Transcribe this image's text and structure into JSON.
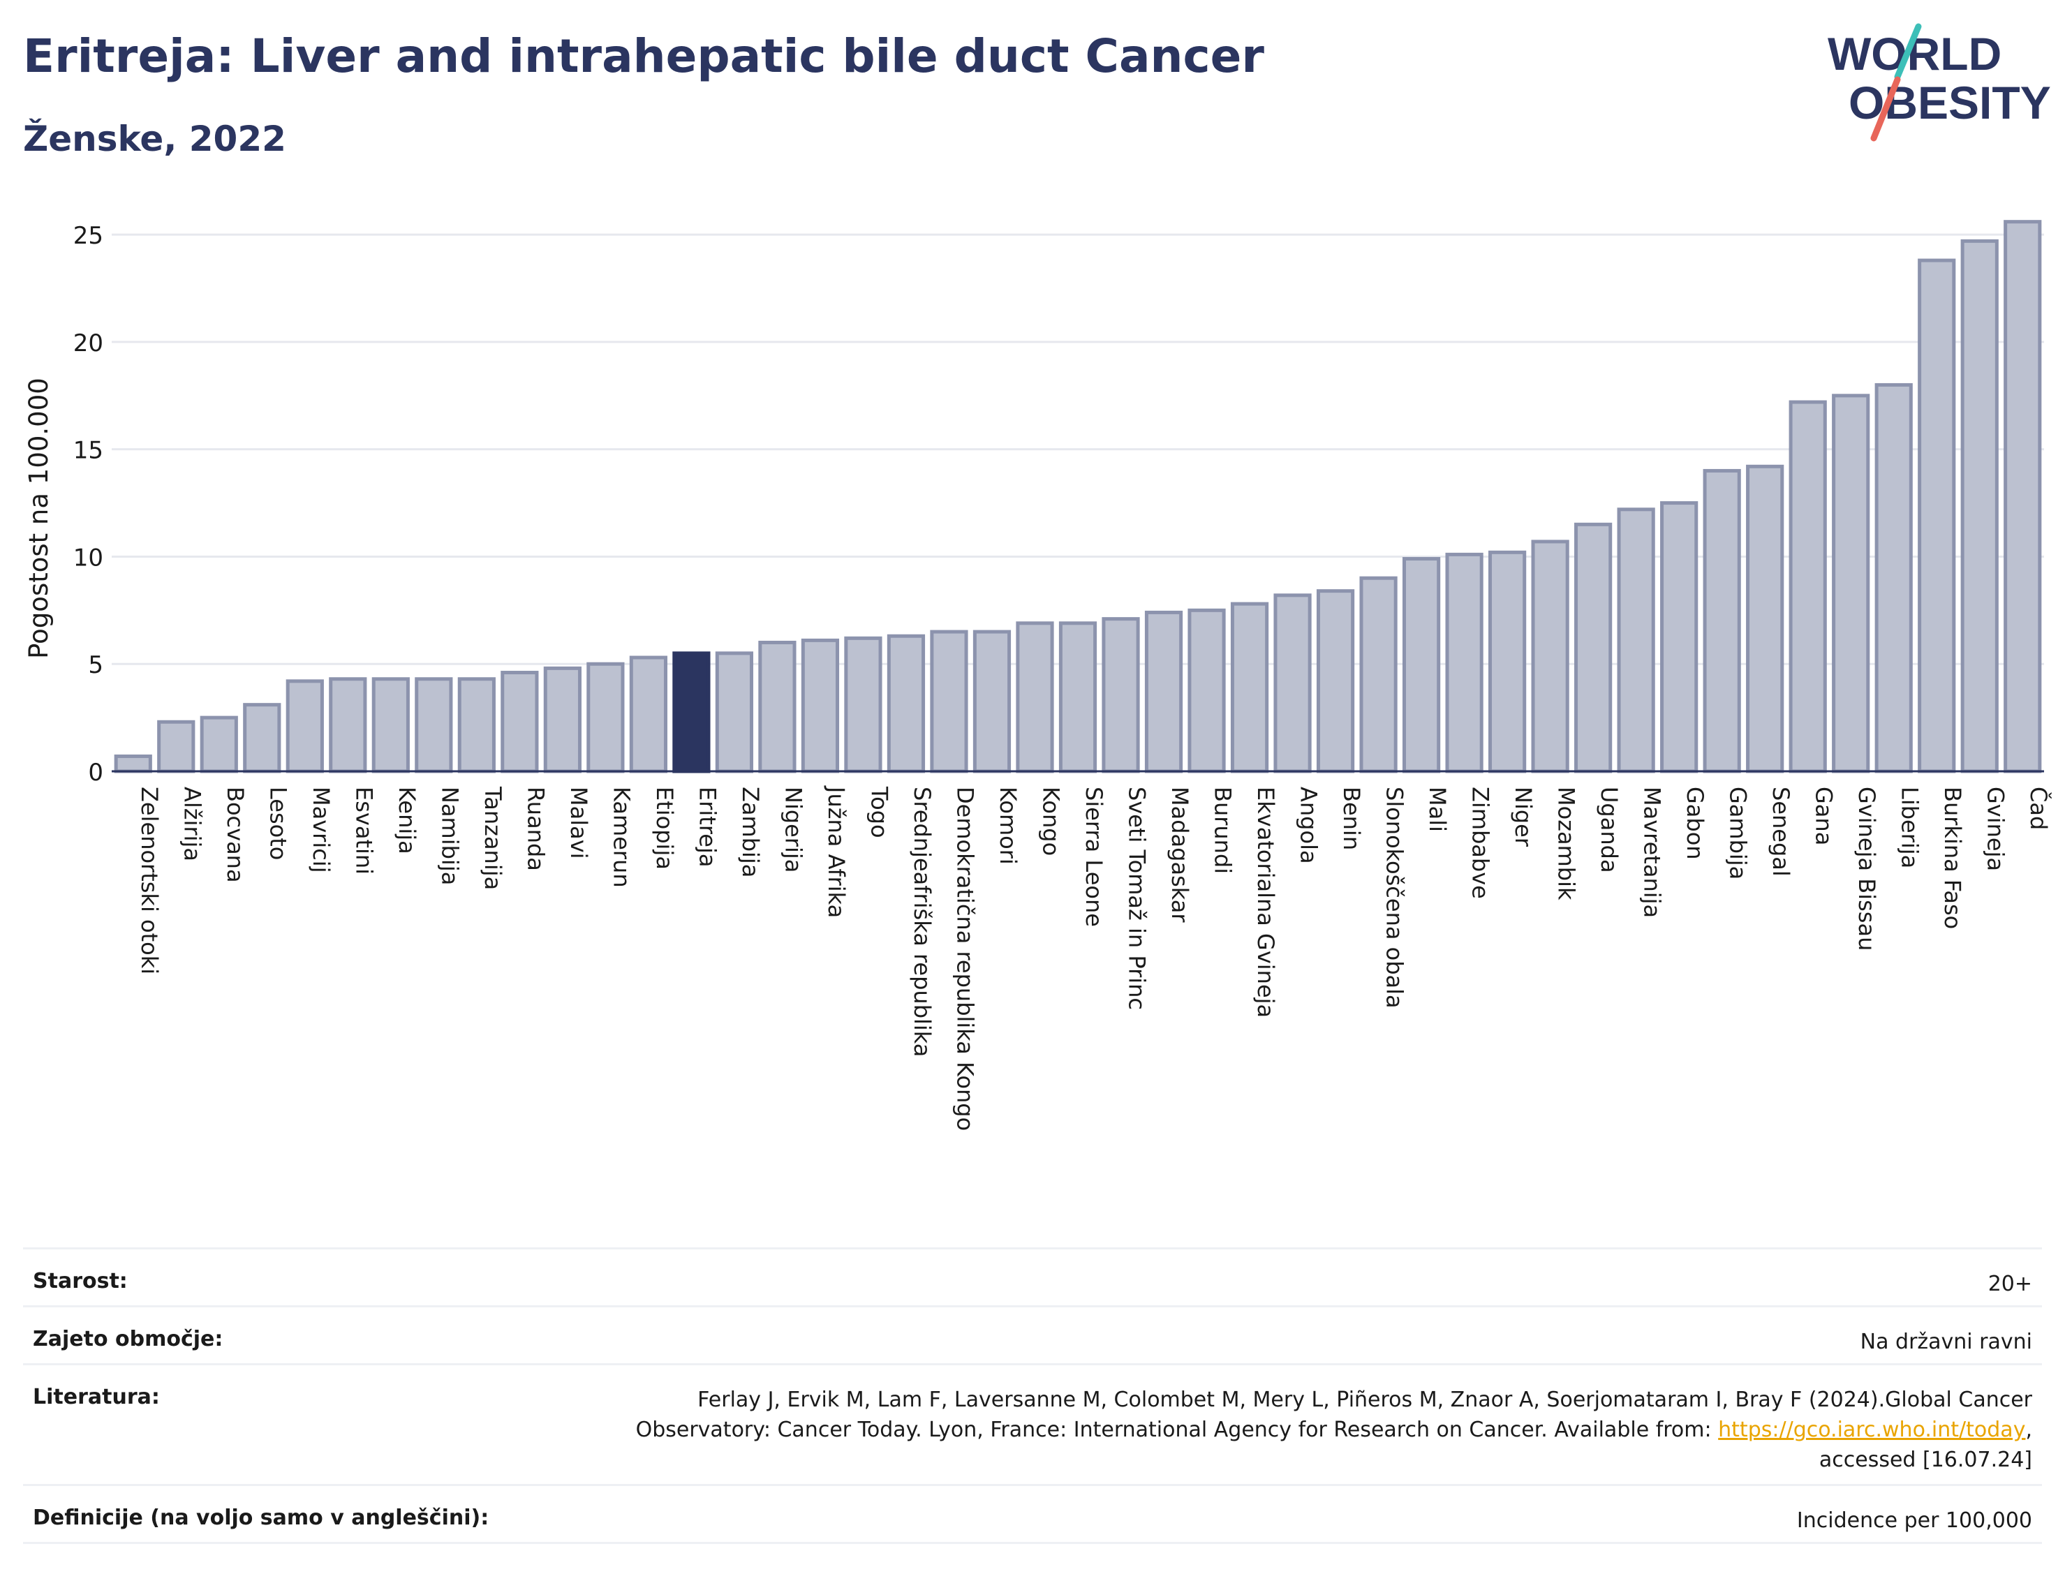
{
  "title": "Eritreja: Liver and intrahepatic bile duct Cancer",
  "subtitle": "Ženske, 2022",
  "logo": {
    "line1": "WORLD",
    "line2": "OBESITY"
  },
  "colors": {
    "title": "#2b3560",
    "bar": "#bcc1d0",
    "bar_edge": "#8c93ad",
    "highlight": "#2b3560",
    "logo_teal": "#3dbfb8",
    "logo_red": "#e8665a"
  },
  "chart_data": {
    "type": "bar",
    "ylabel": "Pogostost na 100.000",
    "xlabel": "",
    "ylim": [
      0,
      26.5
    ],
    "yticks": [
      0,
      5,
      10,
      15,
      20,
      25
    ],
    "grid": true,
    "highlight": "Eritreja",
    "categories": [
      "Zelenortski otoki",
      "Alžirija",
      "Bocvana",
      "Lesoto",
      "Mavricij",
      "Esvatini",
      "Kenija",
      "Namibija",
      "Tanzanija",
      "Ruanda",
      "Malavi",
      "Kamerun",
      "Etiopija",
      "Eritreja",
      "Zambija",
      "Nigerija",
      "Južna Afrika",
      "Togo",
      "Srednjeafriška republika",
      "Demokratična republika Kongo",
      "Komori",
      "Kongo",
      "Sierra Leone",
      "Sveti Tomaž in Princ",
      "Madagaskar",
      "Burundi",
      "Ekvatorialna Gvineja",
      "Angola",
      "Benin",
      "Slonokoščena obala",
      "Mali",
      "Zimbabve",
      "Niger",
      "Mozambik",
      "Uganda",
      "Mavretanija",
      "Gabon",
      "Gambija",
      "Senegal",
      "Gana",
      "Gvineja Bissau",
      "Liberija",
      "Burkina Faso",
      "Gvineja",
      "Čad"
    ],
    "values": [
      0.7,
      2.3,
      2.5,
      3.1,
      4.2,
      4.3,
      4.3,
      4.3,
      4.3,
      4.6,
      4.8,
      5.0,
      5.3,
      5.5,
      5.5,
      6.0,
      6.1,
      6.2,
      6.3,
      6.5,
      6.5,
      6.9,
      6.9,
      7.1,
      7.4,
      7.5,
      7.8,
      8.2,
      8.4,
      9.0,
      9.9,
      10.1,
      10.2,
      10.7,
      11.5,
      12.2,
      12.5,
      14.0,
      14.2,
      17.2,
      17.5,
      18.0,
      23.8,
      24.7,
      25.6
    ]
  },
  "info": {
    "rows": [
      {
        "label": "Starost:",
        "value": "20+"
      },
      {
        "label": "Zajeto območje:",
        "value": "Na državni ravni"
      },
      {
        "label": "Literatura:",
        "value_line1": "Ferlay J, Ervik M, Lam F, Laversanne M, Colombet M, Mery L, Piñeros M, Znaor A, Soerjomataram I, Bray F (2024).Global Cancer",
        "value_line2_pre": "Observatory: Cancer Today. Lyon, France: International Agency for Research on Cancer. Available from: ",
        "value_link": "https://gco.iarc.who.int/today",
        "value_line2_post": ",",
        "value_line3": "accessed [16.07.24]"
      },
      {
        "label": "Definicije (na voljo samo v angleščini):",
        "value": "Incidence per 100,000"
      }
    ]
  }
}
